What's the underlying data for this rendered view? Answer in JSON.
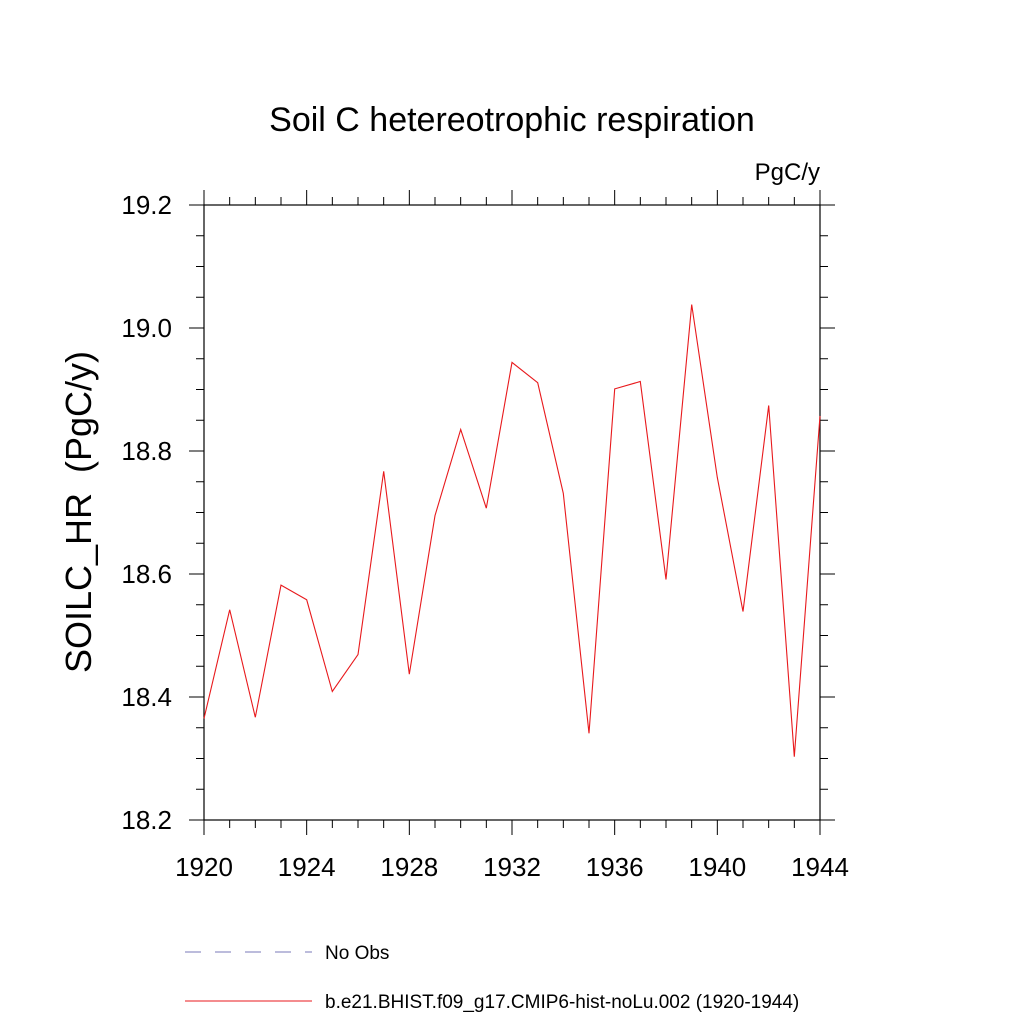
{
  "chart_data": {
    "type": "line",
    "title": "Soil C hetereotrophic respiration",
    "units_label": "PgC/y",
    "ylabel": "SOILC_HR  (PgC/y)",
    "xlabel": "",
    "xlim": [
      1920,
      1944
    ],
    "ylim": [
      18.2,
      19.2
    ],
    "x_ticks": [
      1920,
      1924,
      1928,
      1932,
      1936,
      1940,
      1944
    ],
    "y_ticks": [
      18.2,
      18.4,
      18.6,
      18.8,
      19.0,
      19.2
    ],
    "y_tick_labels": [
      "18.2",
      "18.4",
      "18.6",
      "18.8",
      "19.0",
      "19.2"
    ],
    "grid": false,
    "legend_placement": "bottom",
    "legend": [
      {
        "label": "No Obs",
        "style": "dashed",
        "color": "#7a7ab8"
      },
      {
        "label": "b.e21.BHIST.f09_g17.CMIP6-hist-noLu.002 (1920-1944)",
        "style": "solid",
        "color": "#e8191c"
      }
    ],
    "series": [
      {
        "color": "#e8191c",
        "x": [
          1920,
          1921,
          1922,
          1923,
          1924,
          1925,
          1926,
          1927,
          1928,
          1929,
          1930,
          1931,
          1932,
          1933,
          1934,
          1935,
          1936,
          1937,
          1938,
          1939,
          1940,
          1941,
          1942,
          1943,
          1944
        ],
        "values": [
          18.365,
          18.542,
          18.367,
          18.582,
          18.558,
          18.409,
          18.469,
          18.767,
          18.437,
          18.695,
          18.835,
          18.707,
          18.944,
          18.911,
          18.731,
          18.341,
          18.901,
          18.913,
          18.591,
          19.038,
          18.757,
          18.539,
          18.874,
          18.303,
          18.857
        ]
      }
    ]
  }
}
